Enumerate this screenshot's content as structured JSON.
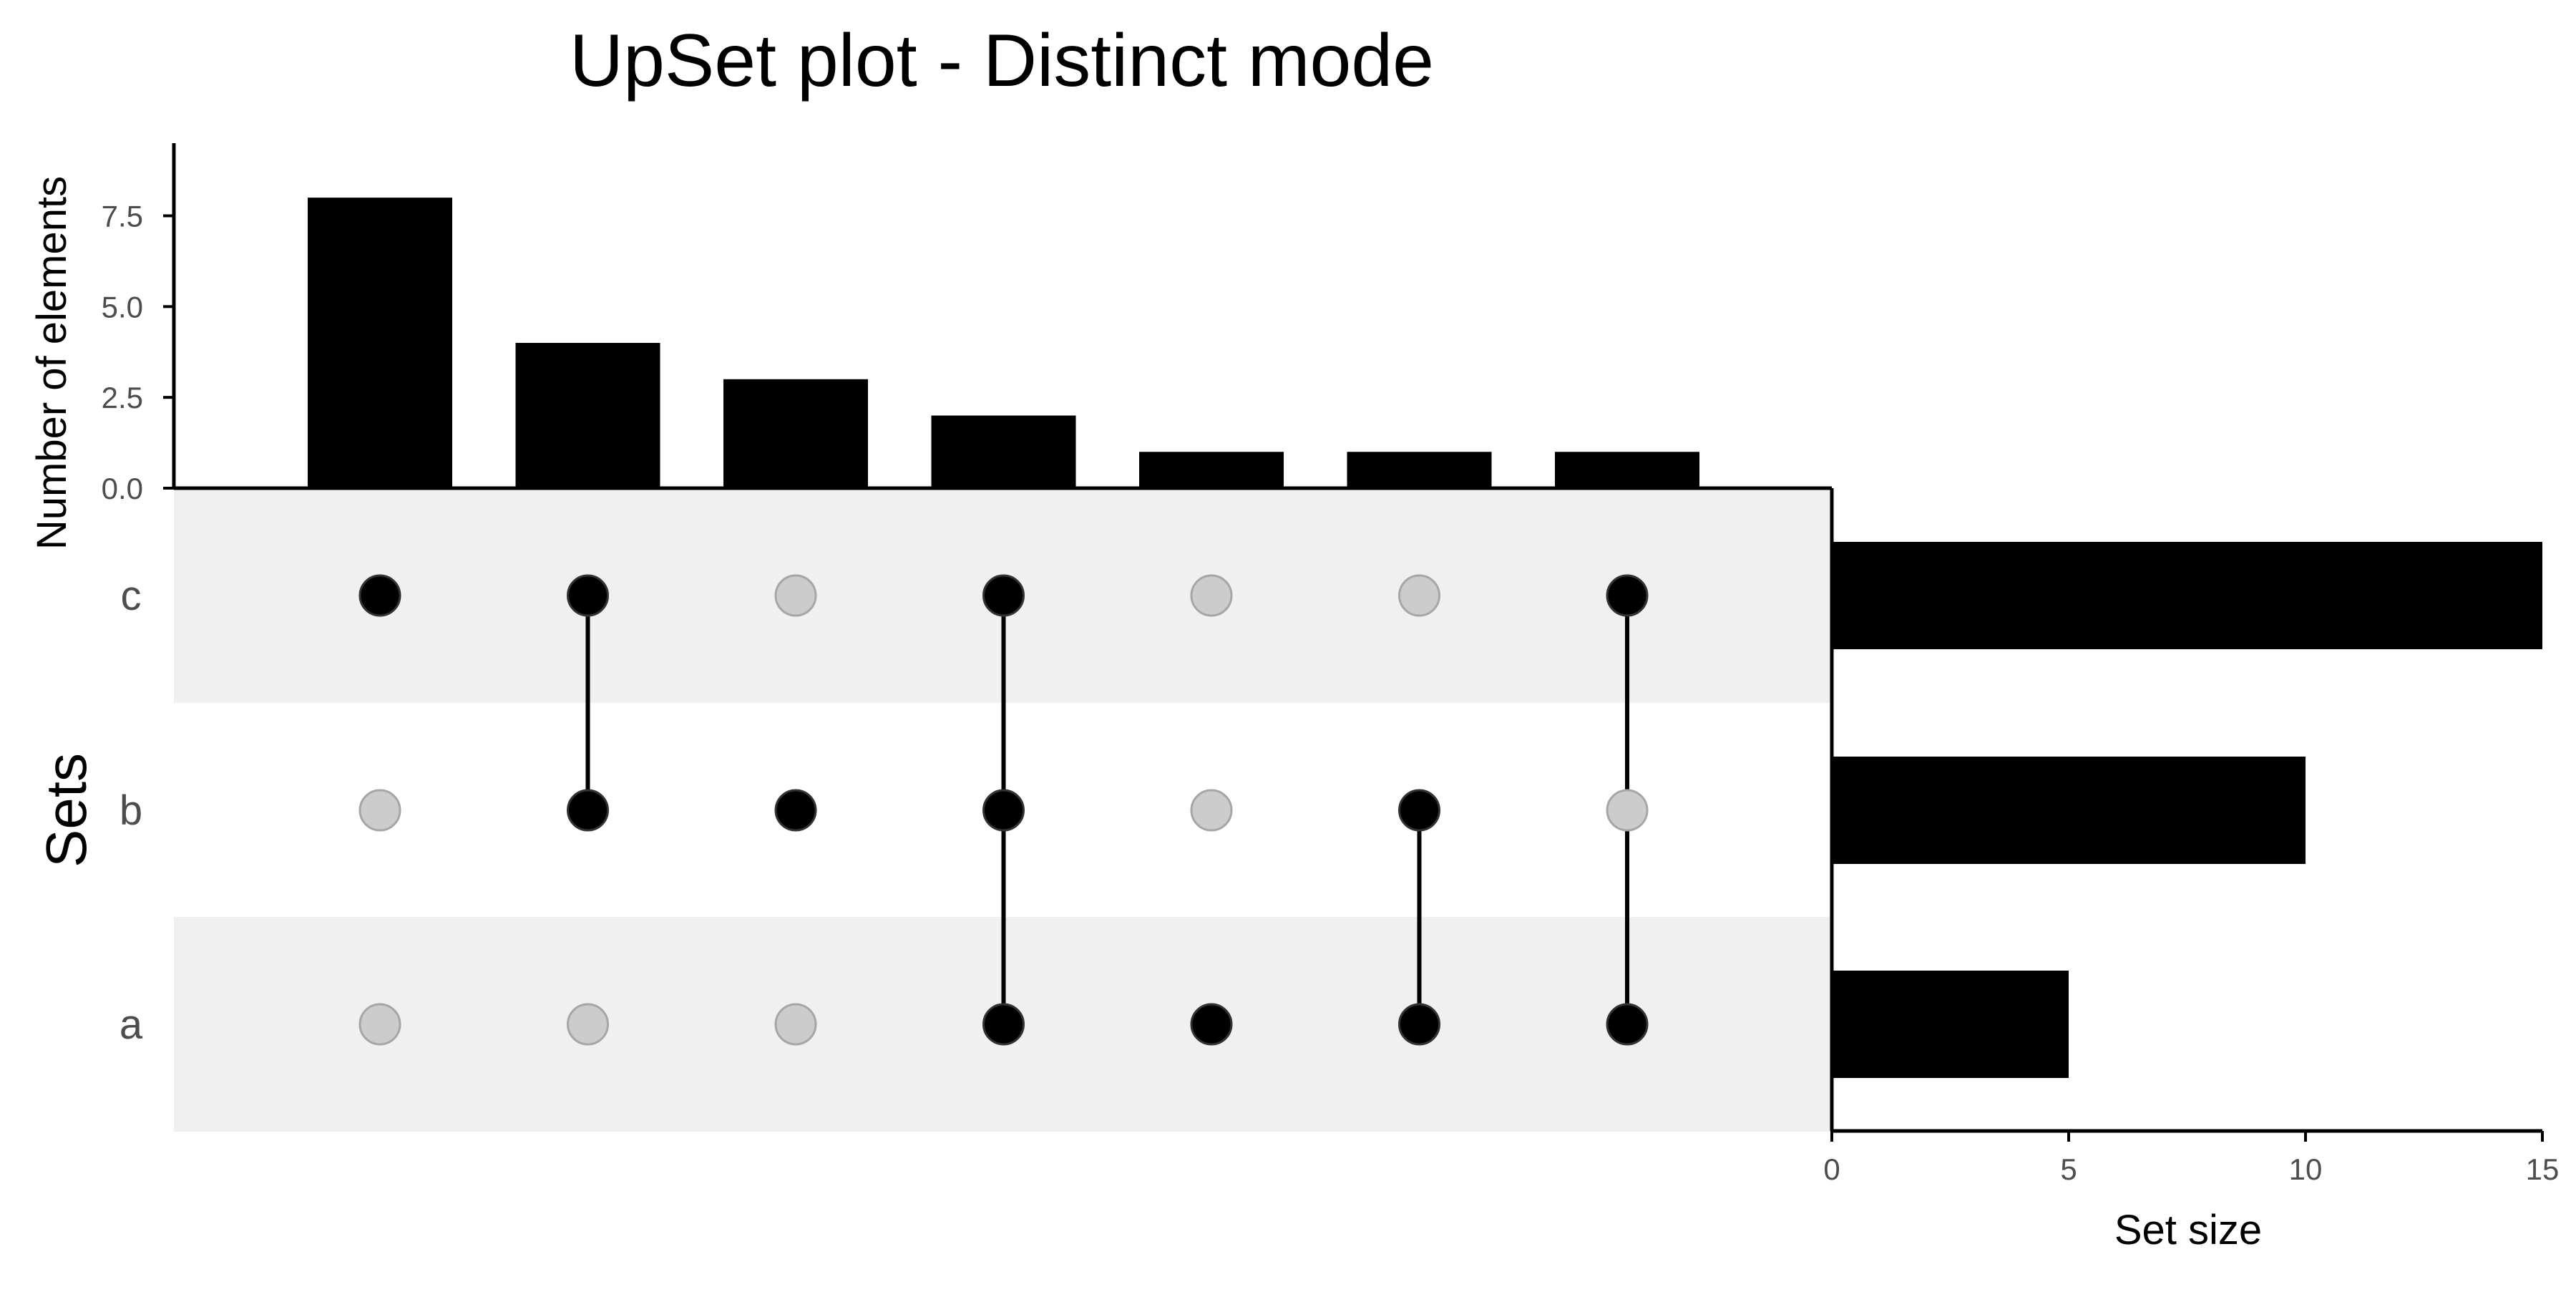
{
  "chart_data": {
    "type": "bar",
    "title": "UpSet plot - Distinct mode",
    "intersections": {
      "ylabel": "Number of elements",
      "ylim": [
        0,
        9.5
      ],
      "yticks": [
        0.0,
        2.5,
        5.0,
        7.5
      ],
      "ytick_labels": [
        "0.0",
        "2.5",
        "5.0",
        "7.5"
      ],
      "values": [
        8,
        4,
        3,
        2,
        1,
        1,
        1
      ],
      "memberships": [
        [
          "c"
        ],
        [
          "b",
          "c"
        ],
        [
          "b"
        ],
        [
          "a",
          "b",
          "c"
        ],
        [
          "a"
        ],
        [
          "a",
          "b"
        ],
        [
          "a",
          "c"
        ]
      ]
    },
    "sets": {
      "ylabel": "Sets",
      "names": [
        "c",
        "b",
        "a"
      ],
      "xlabel": "Set size",
      "xlim": [
        0,
        15
      ],
      "xticks": [
        0,
        5,
        10,
        15
      ],
      "sizes": [
        15,
        10,
        5
      ]
    },
    "colors": {
      "bar": "#000000",
      "dot_active": "#000000",
      "dot_inactive": "#cccccc",
      "dot_inactive_stroke": "#a6a6a6",
      "stripe": "#f0f0f0",
      "axis": "#000000",
      "tick_label": "#4d4d4d"
    },
    "grid": false,
    "legend": "none"
  }
}
